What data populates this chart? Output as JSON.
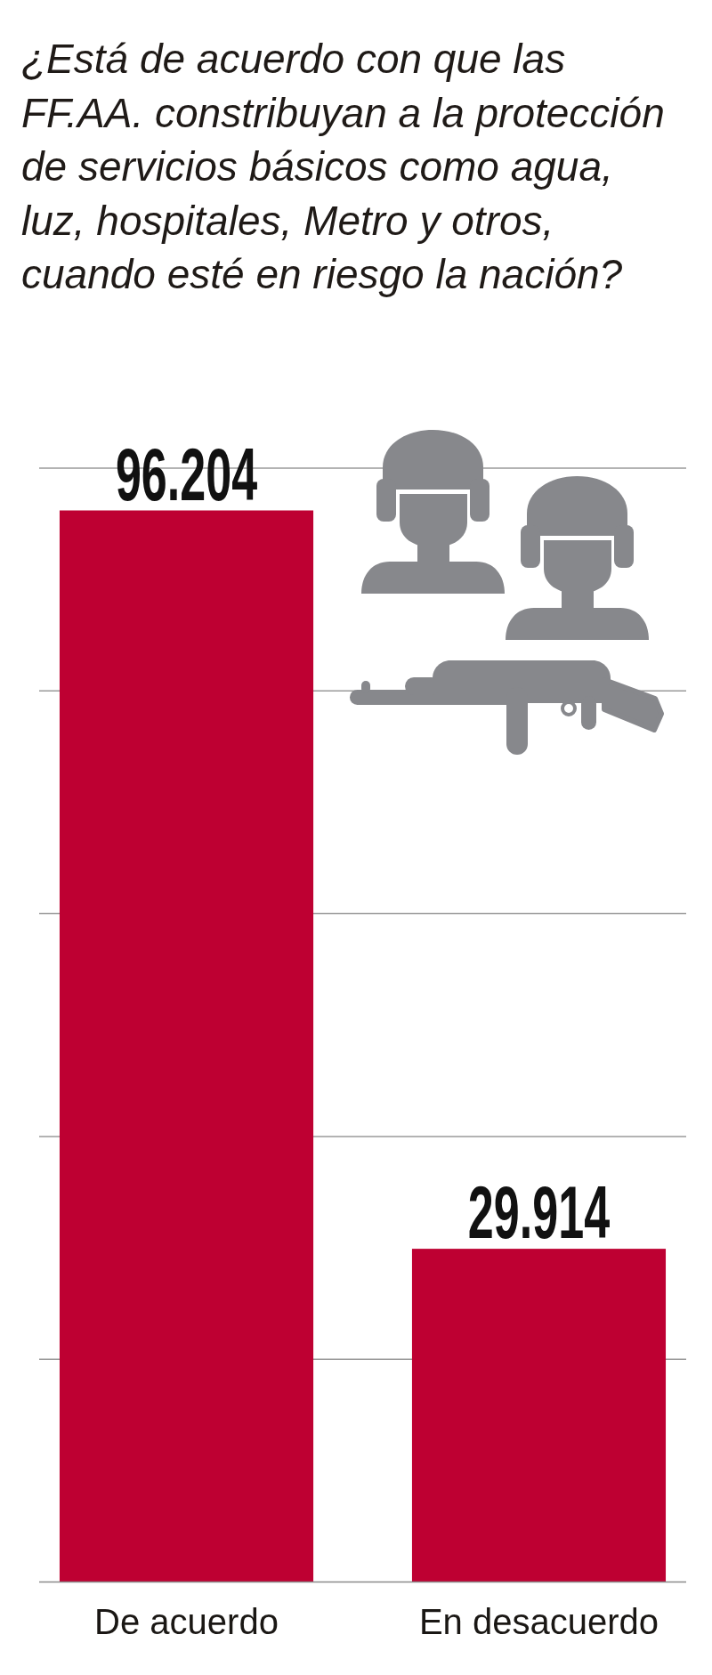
{
  "chart_data": {
    "type": "bar",
    "title": "¿Está de acuerdo con que las FF.AA. constribuyan a la protección de servicios básicos como agua, luz, hospitales, Metro y otros, cuando esté en riesgo la nación?",
    "categories": [
      "De acuerdo",
      "En desacuerdo"
    ],
    "values": [
      96204,
      29914
    ],
    "value_labels": [
      "96.204",
      "29.914"
    ],
    "color": "#be0032",
    "ylim": [
      0,
      100000
    ],
    "yticks": [
      {
        "value": 20000,
        "label": null
      },
      {
        "value": 40000,
        "label": null
      },
      {
        "value": 60000,
        "label": null
      },
      {
        "value": 80000,
        "label": null
      },
      {
        "value": 100000,
        "label": null
      }
    ],
    "grid": "y",
    "tick_labels": "x"
  }
}
